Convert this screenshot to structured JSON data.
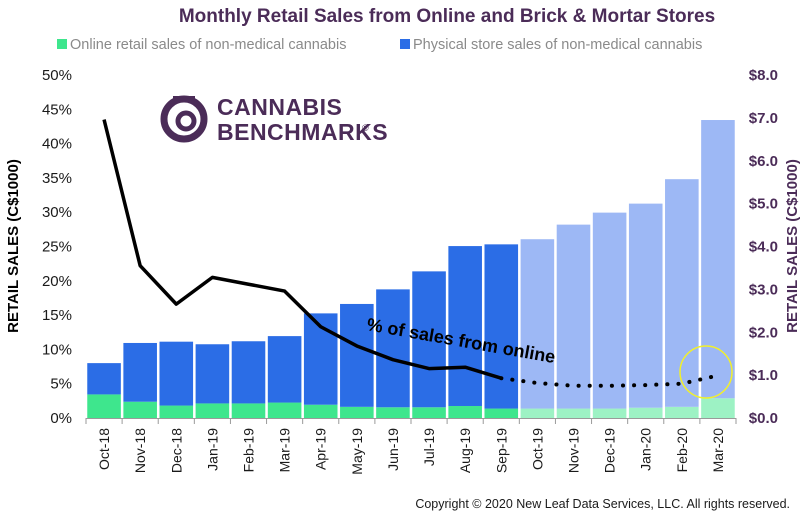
{
  "chart_data": {
    "type": "bar",
    "title": "Monthly Retail Sales from Online and Brick & Mortar Stores",
    "categories": [
      "Oct-18",
      "Nov-18",
      "Dec-18",
      "Jan-19",
      "Feb-19",
      "Mar-19",
      "Apr-19",
      "May-19",
      "Jun-19",
      "Jul-19",
      "Aug-19",
      "Sep-19",
      "Oct-19",
      "Nov-19",
      "Dec-19",
      "Jan-20",
      "Feb-20",
      "Mar-20"
    ],
    "series": [
      {
        "name": "Online retail sales of non-medical cannabis",
        "kind": "stacked-bar",
        "axis": "right",
        "color": "#3ee68d",
        "projected_color": "#9df2c4",
        "values": [
          0.55,
          0.38,
          0.29,
          0.34,
          0.34,
          0.36,
          0.31,
          0.26,
          0.25,
          0.25,
          0.28,
          0.22,
          0.22,
          0.22,
          0.22,
          0.24,
          0.26,
          0.46
        ]
      },
      {
        "name": "Physical store sales of non-medical cannabis",
        "kind": "stacked-bar",
        "axis": "right",
        "color": "#2b6de6",
        "projected_color": "#9db8f5",
        "values": [
          0.73,
          1.37,
          1.49,
          1.38,
          1.45,
          1.55,
          2.13,
          2.4,
          2.75,
          3.17,
          3.73,
          3.83,
          3.95,
          4.29,
          4.57,
          4.76,
          5.31,
          6.49
        ]
      },
      {
        "kind": "line",
        "axis": "left",
        "color": "#000000",
        "values": [
          43.5,
          22.2,
          16.6,
          20.5,
          19.5,
          18.5,
          13.3,
          10.5,
          8.5,
          7.2,
          7.4,
          5.8,
          5.1,
          4.7,
          4.7,
          4.8,
          5.0,
          6.2
        ]
      }
    ],
    "projected_from_index": 12,
    "y_left": {
      "label": "RETAIL SALES (C$1000)",
      "ylim": [
        0,
        50
      ],
      "ticks": [
        "0%",
        "5%",
        "10%",
        "15%",
        "20%",
        "25%",
        "30%",
        "35%",
        "40%",
        "45%",
        "50%"
      ]
    },
    "y_right": {
      "label": "RETAIL SALES (C$1000)",
      "ylim": [
        0,
        8
      ],
      "ticks": [
        "$0.0",
        "$1.0",
        "$2.0",
        "$3.0",
        "$4.0",
        "$5.0",
        "$6.0",
        "$7.0",
        "$8.0"
      ]
    },
    "annotation": "% of sales from online",
    "legend_position": "top",
    "grid": false,
    "highlight_circle_index": 17,
    "copyright": "Copyright © 2020 New Leaf Data Services, LLC. All rights reserved.",
    "logo": {
      "line1": "CANNABIS",
      "line2": "BENCHMARKS",
      "mark": "®"
    },
    "colors": {
      "brand_purple": "#4b2c58",
      "highlight_circle": "#f2f02a"
    }
  }
}
